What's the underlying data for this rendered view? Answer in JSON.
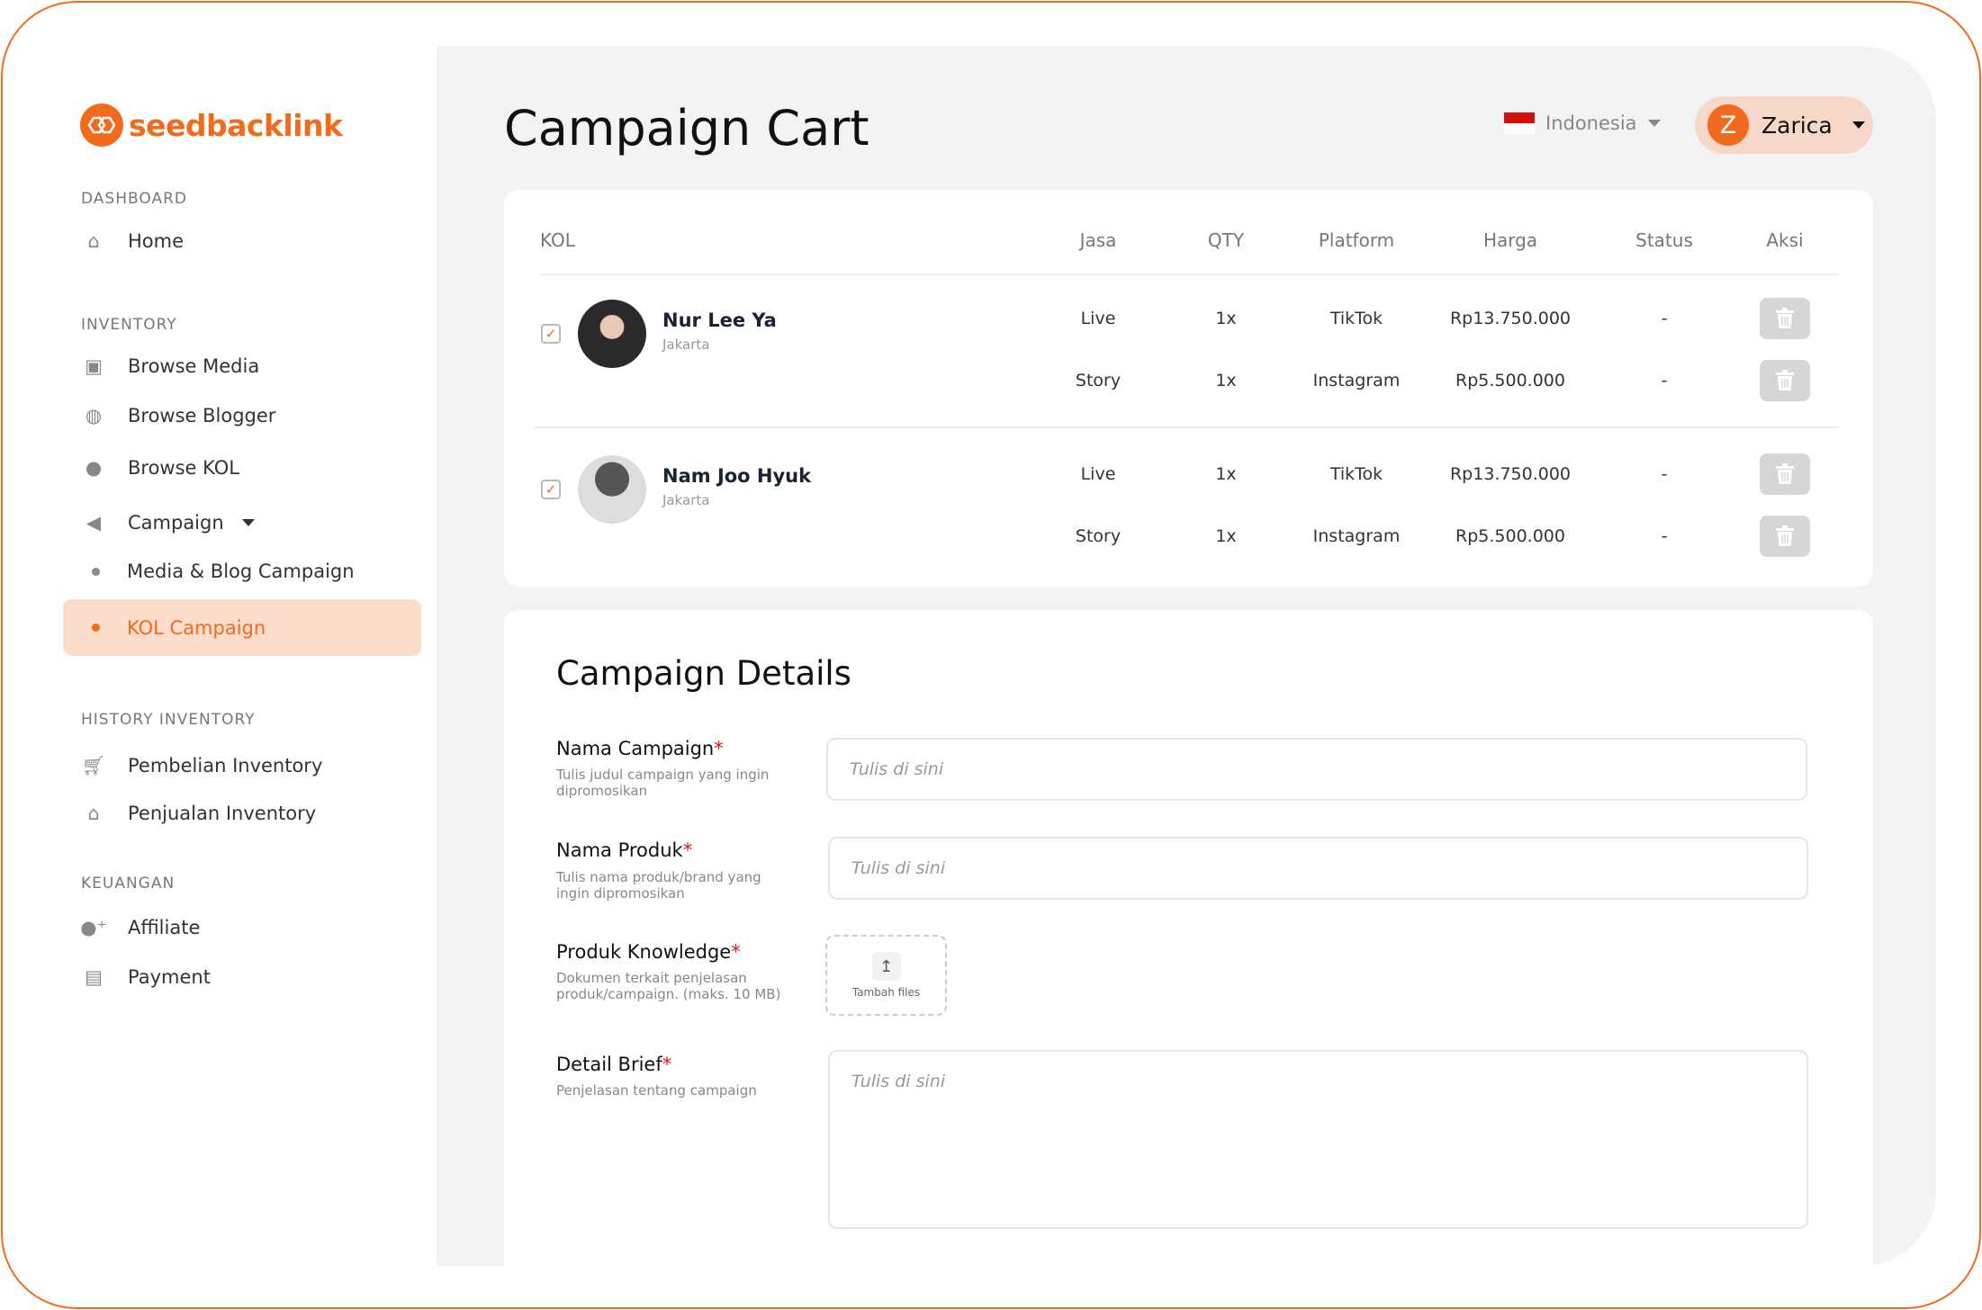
{
  "brand": {
    "name": "seedbacklink",
    "accent": "#f26a1b"
  },
  "sidebar": {
    "sections": [
      {
        "label": "DASHBOARD"
      },
      {
        "label": "INVENTORY"
      },
      {
        "label": "HISTORY INVENTORY"
      },
      {
        "label": "KEUANGAN"
      }
    ],
    "items": [
      {
        "label": "Home",
        "icon": "home-icon"
      },
      {
        "label": "Browse Media",
        "icon": "monitor-icon"
      },
      {
        "label": "Browse Blogger",
        "icon": "globe-icon"
      },
      {
        "label": "Browse KOL",
        "icon": "user-icon"
      },
      {
        "label": "Campaign",
        "icon": "megaphone-icon"
      },
      {
        "label": "Media & Blog Campaign"
      },
      {
        "label": "KOL Campaign",
        "active": true
      },
      {
        "label": "Pembelian Inventory",
        "icon": "cart-icon"
      },
      {
        "label": "Penjualan Inventory",
        "icon": "store-icon"
      },
      {
        "label": "Affiliate",
        "icon": "user-plus-icon"
      },
      {
        "label": "Payment",
        "icon": "payment-icon"
      }
    ]
  },
  "header": {
    "title": "Campaign Cart",
    "language": "Indonesia",
    "user": {
      "initial": "Z",
      "name": "Zarica"
    }
  },
  "table": {
    "columns": [
      "KOL",
      "Jasa",
      "QTY",
      "Platform",
      "Harga",
      "Status",
      "Aksi"
    ],
    "rows": [
      {
        "name": "Nur Lee Ya",
        "city": "Jakarta",
        "checked": true,
        "services": [
          {
            "jasa": "Live",
            "qty": "1x",
            "platform": "TikTok",
            "harga": "Rp13.750.000",
            "status": "-"
          },
          {
            "jasa": "Story",
            "qty": "1x",
            "platform": "Instagram",
            "harga": "Rp5.500.000",
            "status": "-"
          }
        ]
      },
      {
        "name": "Nam Joo Hyuk",
        "city": "Jakarta",
        "checked": true,
        "services": [
          {
            "jasa": "Live",
            "qty": "1x",
            "platform": "TikTok",
            "harga": "Rp13.750.000",
            "status": "-"
          },
          {
            "jasa": "Story",
            "qty": "1x",
            "platform": "Instagram",
            "harga": "Rp5.500.000",
            "status": "-"
          }
        ]
      }
    ]
  },
  "details": {
    "title": "Campaign Details",
    "fields": [
      {
        "label": "Nama Campaign",
        "help": "Tulis judul campaign yang ingin dipromosikan",
        "placeholder": "Tulis di sini"
      },
      {
        "label": "Nama Produk",
        "help": "Tulis nama produk/brand yang ingin dipromosikan",
        "placeholder": "Tulis di sini"
      },
      {
        "label": "Produk Knowledge",
        "help": "Dokumen terkait penjelasan produk/campaign. (maks. 10 MB)",
        "upload_label": "Tambah files"
      },
      {
        "label": "Detail Brief",
        "help": "Penjelasan tentang campaign",
        "placeholder": "Tulis di sini"
      }
    ],
    "required_mark": "*"
  }
}
